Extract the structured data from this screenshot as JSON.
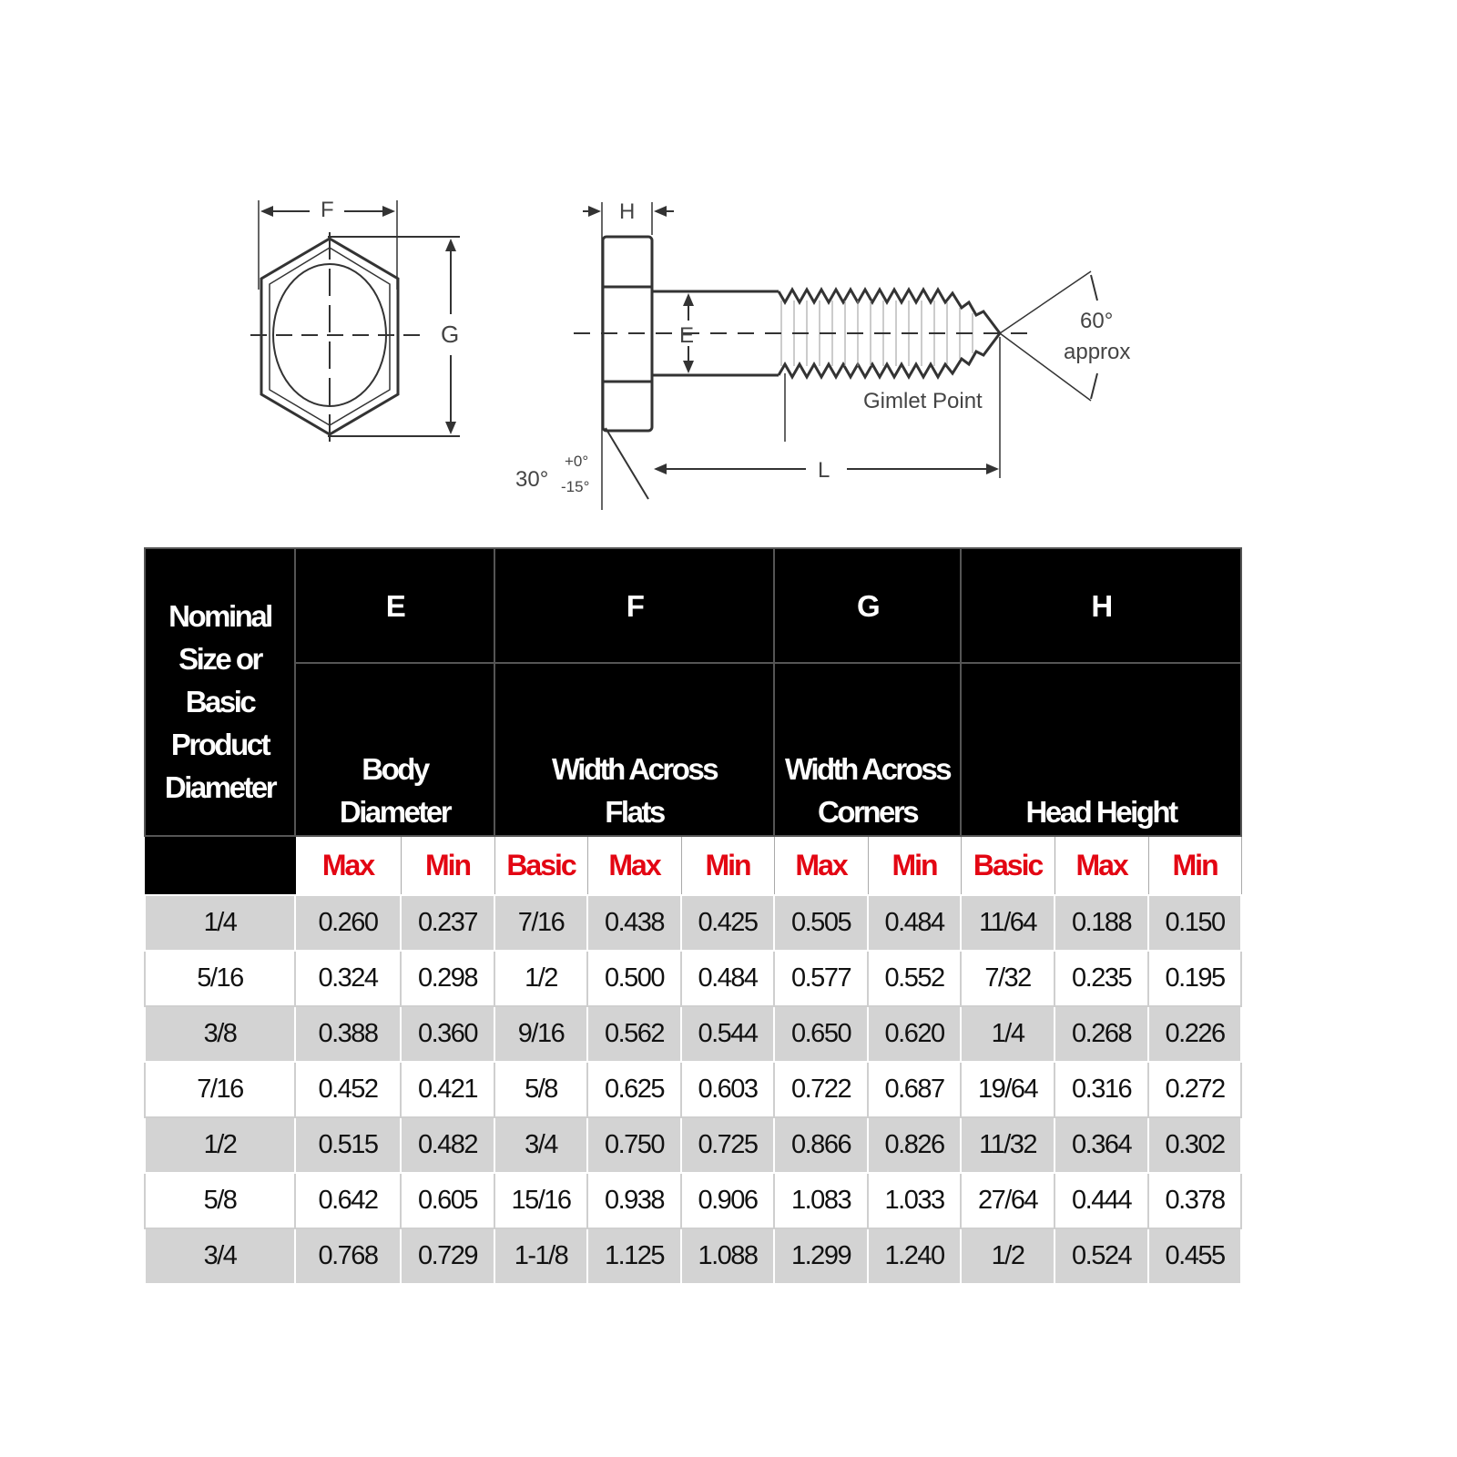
{
  "diagram": {
    "labels": {
      "f": "F",
      "g": "G",
      "h": "H",
      "e": "E",
      "l": "L",
      "angle_60": "60°",
      "approx": "approx",
      "gimlet": "Gimlet Point",
      "angle_30": "30°",
      "tol_plus": "+0°",
      "tol_minus": "-15°"
    }
  },
  "table": {
    "nominal_header": [
      "Nominal",
      "Size or",
      "Basic",
      "Product",
      "Diameter"
    ],
    "groups": [
      {
        "letter": "E",
        "name": [
          "Body",
          "Diameter"
        ]
      },
      {
        "letter": "F",
        "name": [
          "Width Across",
          "Flats"
        ]
      },
      {
        "letter": "G",
        "name": [
          "Width Across",
          "Corners"
        ]
      },
      {
        "letter": "H",
        "name": [
          "Head Height"
        ]
      }
    ],
    "subheaders": [
      "Max",
      "Min",
      "Basic",
      "Max",
      "Min",
      "Max",
      "Min",
      "Basic",
      "Max",
      "Min"
    ],
    "rows": [
      [
        "1/4",
        "0.260",
        "0.237",
        "7/16",
        "0.438",
        "0.425",
        "0.505",
        "0.484",
        "11/64",
        "0.188",
        "0.150"
      ],
      [
        "5/16",
        "0.324",
        "0.298",
        "1/2",
        "0.500",
        "0.484",
        "0.577",
        "0.552",
        "7/32",
        "0.235",
        "0.195"
      ],
      [
        "3/8",
        "0.388",
        "0.360",
        "9/16",
        "0.562",
        "0.544",
        "0.650",
        "0.620",
        "1/4",
        "0.268",
        "0.226"
      ],
      [
        "7/16",
        "0.452",
        "0.421",
        "5/8",
        "0.625",
        "0.603",
        "0.722",
        "0.687",
        "19/64",
        "0.316",
        "0.272"
      ],
      [
        "1/2",
        "0.515",
        "0.482",
        "3/4",
        "0.750",
        "0.725",
        "0.866",
        "0.826",
        "11/32",
        "0.364",
        "0.302"
      ],
      [
        "5/8",
        "0.642",
        "0.605",
        "15/16",
        "0.938",
        "0.906",
        "1.083",
        "1.033",
        "27/64",
        "0.444",
        "0.378"
      ],
      [
        "3/4",
        "0.768",
        "0.729",
        "1-1/8",
        "1.125",
        "1.088",
        "1.299",
        "1.240",
        "1/2",
        "0.524",
        "0.455"
      ]
    ],
    "colors": {
      "header_bg": "#000000",
      "subheader_text": "#e30613",
      "stripe": "#d3d3d3"
    }
  }
}
